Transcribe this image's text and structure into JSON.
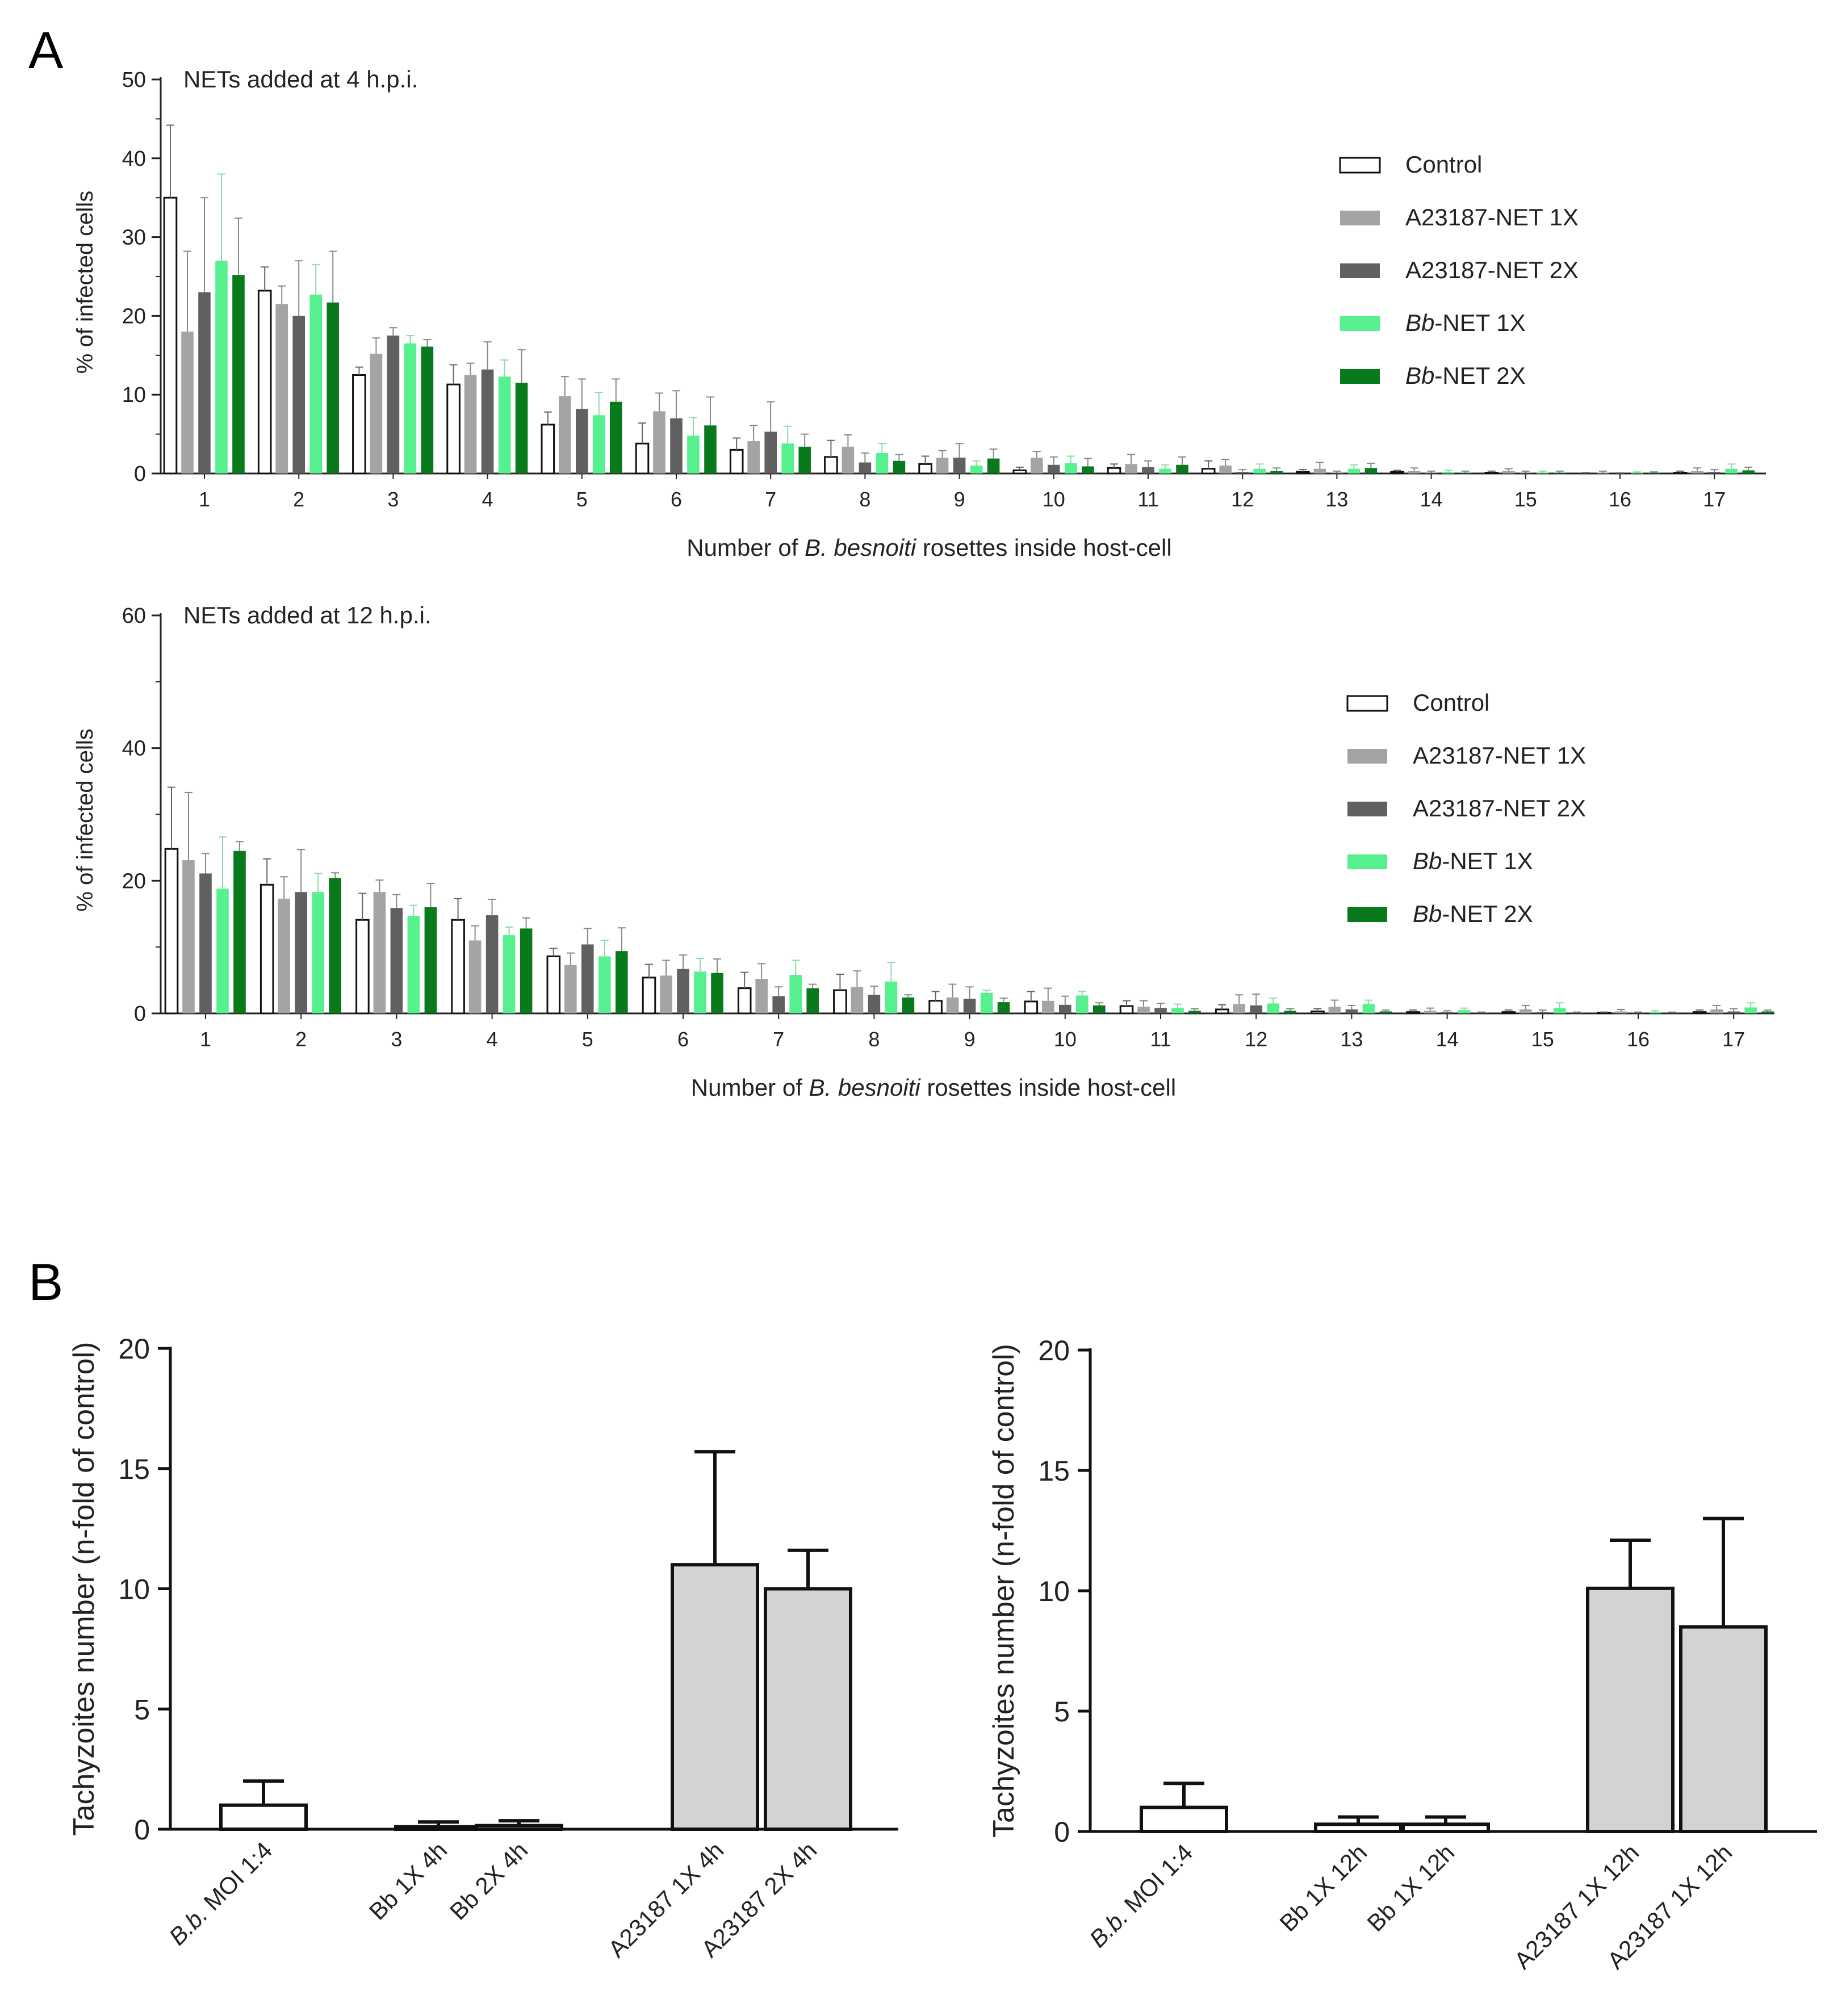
{
  "figure": {
    "panel_a_label": "A",
    "panel_b_label": "B"
  },
  "colors": {
    "control": "#ffffff",
    "a1x": "#a4a4a4",
    "a2x": "#606060",
    "bb1x": "#56f08f",
    "bb2x": "#087a1c",
    "b_bar": "#d3d3d3"
  },
  "chart_data": [
    {
      "type": "bar",
      "id": "a_top",
      "title": "NETs added at 4 h.p.i.",
      "xlabel_parts": [
        "Number of ",
        "B. besnoiti",
        " rosettes inside host-cell"
      ],
      "ylabel": "% of infected cells",
      "ylim": [
        0,
        50
      ],
      "yticks": [
        0,
        10,
        20,
        30,
        40,
        50
      ],
      "categories": [
        "1",
        "2",
        "3",
        "4",
        "5",
        "6",
        "7",
        "8",
        "9",
        "10",
        "11",
        "12",
        "13",
        "14",
        "15",
        "16",
        "17"
      ],
      "legend": [
        {
          "prefix": "",
          "italic": "",
          "suffix": "Control"
        },
        {
          "prefix": "",
          "italic": "",
          "suffix": "A23187-NET 1X"
        },
        {
          "prefix": "",
          "italic": "",
          "suffix": "A23187-NET 2X"
        },
        {
          "prefix": "",
          "italic": "Bb",
          "suffix": "-NET 1X"
        },
        {
          "prefix": "",
          "italic": "Bb",
          "suffix": "-NET 2X"
        }
      ],
      "series": [
        {
          "name": "Control",
          "values": [
            35,
            23.2,
            12.5,
            11.3,
            6.2,
            3.8,
            3.0,
            2.1,
            1.2,
            0.4,
            0.7,
            0.6,
            0.2,
            0.2,
            0.1,
            0.0,
            0.1
          ],
          "errors": [
            9.2,
            3.0,
            1.0,
            2.5,
            1.6,
            2.6,
            1.5,
            2.1,
            1.0,
            0.4,
            0.5,
            1.0,
            0.3,
            0.2,
            0.2,
            0.1,
            0.2
          ]
        },
        {
          "name": "A23187-NET 1X",
          "values": [
            18,
            21.5,
            15.2,
            12.5,
            9.8,
            7.9,
            4.1,
            3.4,
            2.0,
            2.0,
            1.2,
            1.0,
            0.6,
            0.3,
            0.3,
            0.1,
            0.3
          ],
          "errors": [
            10.2,
            2.3,
            2.0,
            1.5,
            2.5,
            2.3,
            2.0,
            1.5,
            0.9,
            0.8,
            1.2,
            0.8,
            0.8,
            0.4,
            0.3,
            0.2,
            0.4
          ]
        },
        {
          "name": "A23187-NET 2X",
          "values": [
            23,
            20.0,
            17.5,
            13.2,
            8.2,
            7.0,
            5.3,
            1.4,
            2.0,
            1.1,
            0.8,
            0.2,
            0.1,
            0.1,
            0.1,
            0.0,
            0.2
          ],
          "errors": [
            12.0,
            7.0,
            1.0,
            3.5,
            3.8,
            3.5,
            3.8,
            1.2,
            1.8,
            1.0,
            0.8,
            0.3,
            0.2,
            0.2,
            0.2,
            0.1,
            0.3
          ]
        },
        {
          "name": "Bb-NET 1X",
          "values": [
            27,
            22.7,
            16.5,
            12.3,
            7.4,
            4.8,
            3.8,
            2.6,
            1.0,
            1.3,
            0.6,
            0.6,
            0.6,
            0.2,
            0.1,
            0.1,
            0.6
          ],
          "errors": [
            11.0,
            3.8,
            1.0,
            2.1,
            2.9,
            2.3,
            2.2,
            1.2,
            0.6,
            0.9,
            0.5,
            0.6,
            0.5,
            0.2,
            0.2,
            0.1,
            0.6
          ]
        },
        {
          "name": "Bb-NET 2X",
          "values": [
            25.2,
            21.7,
            16.1,
            11.5,
            9.1,
            6.1,
            3.4,
            1.6,
            1.9,
            0.9,
            1.1,
            0.3,
            0.7,
            0.1,
            0.1,
            0.1,
            0.4
          ],
          "errors": [
            7.2,
            6.5,
            0.9,
            4.2,
            2.9,
            3.6,
            1.6,
            0.8,
            1.2,
            1.0,
            1.0,
            0.4,
            0.6,
            0.2,
            0.2,
            0.1,
            0.4
          ]
        }
      ]
    },
    {
      "type": "bar",
      "id": "a_bottom",
      "title": "NETs added at 12 h.p.i.",
      "xlabel_parts": [
        "Number of ",
        "B. besnoiti",
        " rosettes inside host-cell"
      ],
      "ylabel": "% of infected cells",
      "ylim": [
        0,
        60
      ],
      "yticks": [
        0,
        20,
        40,
        60
      ],
      "categories": [
        "1",
        "2",
        "3",
        "4",
        "5",
        "6",
        "7",
        "8",
        "9",
        "10",
        "11",
        "12",
        "13",
        "14",
        "15",
        "16",
        "17"
      ],
      "legend": [
        {
          "prefix": "",
          "italic": "",
          "suffix": "Control"
        },
        {
          "prefix": "",
          "italic": "",
          "suffix": "A23187-NET 1X"
        },
        {
          "prefix": "",
          "italic": "",
          "suffix": "A23187-NET 2X"
        },
        {
          "prefix": "",
          "italic": "Bb",
          "suffix": "-NET 1X"
        },
        {
          "prefix": "",
          "italic": "Bb",
          "suffix": "-NET 2X"
        }
      ],
      "series": [
        {
          "name": "Control",
          "values": [
            24.8,
            19.4,
            14.1,
            14.1,
            8.6,
            5.4,
            3.8,
            3.5,
            1.9,
            1.8,
            1.1,
            0.6,
            0.3,
            0.2,
            0.2,
            0.1,
            0.2
          ],
          "errors": [
            9.3,
            3.9,
            4.0,
            3.2,
            1.2,
            2.0,
            2.4,
            2.4,
            1.4,
            1.5,
            0.8,
            0.7,
            0.4,
            0.3,
            0.3,
            0.1,
            0.3
          ]
        },
        {
          "name": "A23187-NET 1X",
          "values": [
            23.1,
            17.3,
            18.3,
            11.0,
            7.3,
            5.7,
            5.2,
            4.0,
            2.4,
            1.9,
            1.0,
            1.4,
            1.0,
            0.4,
            0.6,
            0.3,
            0.6
          ],
          "errors": [
            10.2,
            3.3,
            1.8,
            2.2,
            1.8,
            2.3,
            2.3,
            2.4,
            2.0,
            1.9,
            0.9,
            1.4,
            1.0,
            0.4,
            0.6,
            0.3,
            0.6
          ]
        },
        {
          "name": "A23187-NET 2X",
          "values": [
            21.1,
            18.3,
            15.9,
            14.8,
            10.4,
            6.7,
            2.6,
            2.8,
            2.2,
            1.3,
            0.8,
            1.2,
            0.6,
            0.2,
            0.2,
            0.1,
            0.3
          ],
          "errors": [
            3.0,
            6.4,
            2.0,
            2.4,
            2.4,
            2.1,
            1.4,
            1.3,
            1.8,
            1.3,
            0.7,
            1.7,
            0.6,
            0.2,
            0.3,
            0.1,
            0.4
          ]
        },
        {
          "name": "Bb-NET 1X",
          "values": [
            18.8,
            18.3,
            14.7,
            11.8,
            8.6,
            6.3,
            5.8,
            4.8,
            3.1,
            2.7,
            0.8,
            1.5,
            1.4,
            0.5,
            0.8,
            0.2,
            0.9
          ],
          "errors": [
            7.8,
            2.8,
            1.6,
            1.2,
            2.4,
            2.0,
            2.2,
            2.9,
            0.4,
            0.6,
            0.6,
            0.8,
            0.6,
            0.3,
            0.8,
            0.2,
            0.7
          ]
        },
        {
          "name": "Bb-NET 2X",
          "values": [
            24.5,
            20.4,
            16.0,
            12.8,
            9.4,
            6.1,
            3.8,
            2.4,
            1.7,
            1.2,
            0.4,
            0.4,
            0.3,
            0.1,
            0.1,
            0.1,
            0.3
          ],
          "errors": [
            1.4,
            0.8,
            3.6,
            1.6,
            3.5,
            2.1,
            0.6,
            0.4,
            0.6,
            0.4,
            0.3,
            0.3,
            0.2,
            0.1,
            0.1,
            0.1,
            0.2
          ]
        }
      ]
    },
    {
      "type": "bar",
      "id": "b_left",
      "title": "",
      "ylabel": "Tachyzoites number (n-fold of control)",
      "ylim": [
        0,
        20
      ],
      "yticks": [
        0,
        5,
        10,
        15,
        20
      ],
      "categories": [
        {
          "italic": "B.b.",
          "suffix": " MOI 1:4"
        },
        {
          "italic": "",
          "suffix": "Bb 1X 4h"
        },
        {
          "italic": "",
          "suffix": "Bb 2X 4h"
        },
        {
          "italic": "",
          "suffix": "A23187 1X 4h"
        },
        {
          "italic": "",
          "suffix": "A23187 2X 4h"
        }
      ],
      "values": [
        1.0,
        0.1,
        0.15,
        11.0,
        10.0
      ],
      "errors": [
        1.0,
        0.2,
        0.2,
        4.7,
        1.6
      ]
    },
    {
      "type": "bar",
      "id": "b_right",
      "title": "",
      "ylabel": "Tachyzoites number (n-fold of control)",
      "ylim": [
        0,
        20
      ],
      "yticks": [
        0,
        5,
        10,
        15,
        20
      ],
      "categories": [
        {
          "italic": "B.b.",
          "suffix": " MOI 1:4"
        },
        {
          "italic": "",
          "suffix": "Bb 1X 12h"
        },
        {
          "italic": "",
          "suffix": "Bb 1X 12h"
        },
        {
          "italic": "",
          "suffix": "A23187 1X 12h"
        },
        {
          "italic": "",
          "suffix": "A23187 1X 12h"
        }
      ],
      "values": [
        1.0,
        0.3,
        0.3,
        10.1,
        8.5
      ],
      "errors": [
        1.0,
        0.3,
        0.3,
        2.0,
        4.5
      ]
    }
  ]
}
